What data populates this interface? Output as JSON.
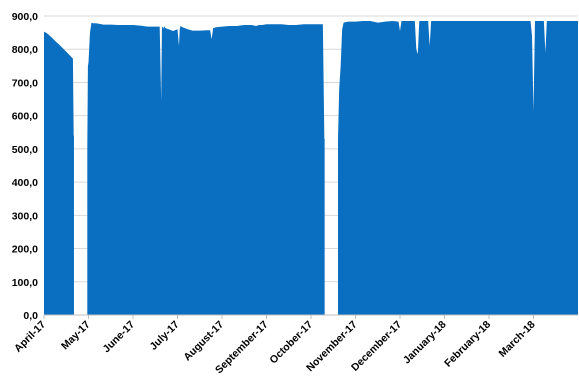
{
  "chart_data": {
    "type": "area",
    "title": "",
    "xlabel": "",
    "ylabel": "",
    "ylim": [
      0,
      900
    ],
    "y_ticks": [
      "0,0",
      "100,0",
      "200,0",
      "300,0",
      "400,0",
      "500,0",
      "600,0",
      "700,0",
      "800,0",
      "900,0"
    ],
    "x_ticks": [
      "April-17",
      "May-17",
      "June-17",
      "July-17",
      "August-17",
      "September-17",
      "October-17",
      "November-17",
      "December-17",
      "January-18",
      "February-18",
      "March-18"
    ],
    "x_range_days": [
      0,
      360
    ],
    "grid": "horizontal",
    "legend": "none",
    "color": "#0B6FC1",
    "series": [
      {
        "x": [
          0,
          2,
          4,
          6,
          8,
          10,
          12,
          14,
          16,
          18,
          19,
          19.5,
          20,
          20.2,
          20.2,
          29.2,
          29.2,
          29.6,
          30,
          31,
          32,
          33,
          35,
          38,
          40,
          45,
          50,
          55,
          60,
          65,
          70,
          78,
          79,
          79.5,
          80,
          80.5,
          81,
          82,
          84,
          87,
          90,
          91,
          91.5,
          92,
          94,
          97,
          100,
          105,
          110,
          112,
          113,
          114,
          116,
          120,
          125,
          130,
          135,
          140,
          143,
          145,
          147,
          150,
          155,
          160,
          165,
          170,
          175,
          180,
          186,
          188,
          189,
          189.2,
          189.2,
          198.2,
          198.2,
          199,
          200,
          201,
          202,
          205,
          210,
          215,
          220,
          225,
          230,
          235,
          239,
          240,
          241,
          245,
          250,
          251,
          252,
          253,
          255,
          259,
          260,
          261,
          265,
          270,
          275,
          280,
          285,
          290,
          295,
          300,
          305,
          310,
          320,
          327,
          328,
          329,
          330,
          331,
          333,
          335,
          337,
          338,
          339,
          345,
          350,
          360
        ],
        "y": [
          853,
          848,
          840,
          832,
          823,
          815,
          806,
          797,
          788,
          779,
          774,
          772,
          540,
          540,
          0,
          0,
          500,
          750,
          760,
          850,
          880,
          878,
          878,
          876,
          874,
          874,
          873,
          873,
          873,
          871,
          868,
          868,
          645,
          868,
          866,
          862,
          869,
          863,
          860,
          855,
          860,
          810,
          860,
          870,
          865,
          860,
          856,
          856,
          857,
          857,
          830,
          863,
          866,
          868,
          870,
          870,
          873,
          873,
          870,
          873,
          873,
          875,
          875,
          875,
          873,
          873,
          875,
          875,
          875,
          875,
          530,
          530,
          0,
          0,
          530,
          680,
          750,
          860,
          880,
          883,
          883,
          885,
          885,
          880,
          883,
          885,
          883,
          855,
          885,
          885,
          885,
          800,
          785,
          885,
          885,
          885,
          810,
          885,
          885,
          885,
          885,
          885,
          885,
          885,
          885,
          885,
          885,
          885,
          885,
          885,
          885,
          840,
          612,
          885,
          885,
          885,
          885,
          790,
          885,
          885,
          885,
          885
        ]
      }
    ]
  }
}
